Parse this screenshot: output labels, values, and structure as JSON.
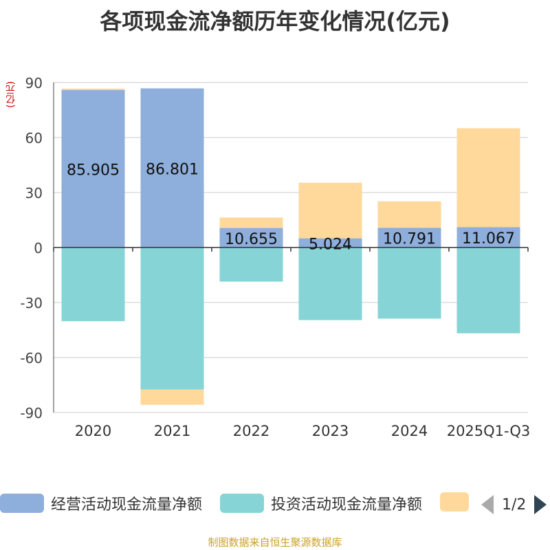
{
  "chart_data": {
    "type": "bar",
    "stacked": true,
    "title": "各项现金流净额历年变化情况(亿元)",
    "ylabel": "(亿元)",
    "ylim": [
      -90,
      90
    ],
    "yticks": [
      90,
      60,
      30,
      0,
      -30,
      -60,
      -90
    ],
    "categories": [
      "2020",
      "2021",
      "2022",
      "2023",
      "2024",
      "2025Q1-Q3"
    ],
    "series": [
      {
        "name": "经营活动现金流量净额",
        "color": "#8eaedb",
        "values": [
          85.905,
          86.801,
          10.655,
          5.024,
          10.791,
          11.067
        ]
      },
      {
        "name": "投资活动现金流量净额",
        "color": "#86d4d6",
        "values": [
          -40.2,
          -77.5,
          -18.6,
          -39.6,
          -38.8,
          -46.8
        ]
      },
      {
        "name": "",
        "color": "#fed99b",
        "values": [
          0.8,
          -8.3,
          5.7,
          30.3,
          14.4,
          54.0
        ]
      }
    ],
    "data_labels": [
      "85.905",
      "86.801",
      "10.655",
      "5.024",
      "10.791",
      "11.067"
    ]
  },
  "legend": {
    "items": [
      {
        "label": "经营活动现金流量净额",
        "color": "#8eaedb"
      },
      {
        "label": "投资活动现金流量净额",
        "color": "#86d4d6"
      },
      {
        "label": "",
        "color": "#fed99b"
      }
    ],
    "page": "1/2"
  },
  "source": "制图数据来自恒生聚源数据库"
}
